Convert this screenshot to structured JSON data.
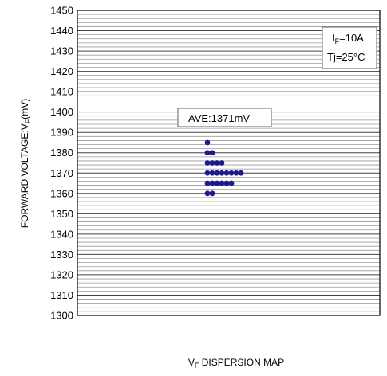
{
  "chart_data": {
    "type": "scatter",
    "title": "",
    "xlabel": {
      "prefix": "V",
      "sub": "F",
      "suffix": " DISPERSION MAP"
    },
    "ylabel": {
      "prefix": "FORWARD VOLTAGE:V",
      "sub": "F",
      "suffix": "(mV)"
    },
    "ylim": [
      1300,
      1450
    ],
    "yticks": [
      1300,
      1310,
      1320,
      1330,
      1340,
      1350,
      1360,
      1370,
      1380,
      1390,
      1400,
      1410,
      1420,
      1430,
      1440,
      1450
    ],
    "minor_grid_step": 2,
    "grid": true,
    "marker_color": "#1a1a8c",
    "conditions": {
      "current": {
        "prefix": "I",
        "sub": "F",
        "suffix": "=10A"
      },
      "temperature": "Tj=25°C"
    },
    "average_label": "AVE:1371mV",
    "rows": [
      {
        "value": 1385,
        "count": 1
      },
      {
        "value": 1380,
        "count": 2
      },
      {
        "value": 1375,
        "count": 4
      },
      {
        "value": 1370,
        "count": 8
      },
      {
        "value": 1365,
        "count": 6
      },
      {
        "value": 1360,
        "count": 2
      }
    ]
  }
}
